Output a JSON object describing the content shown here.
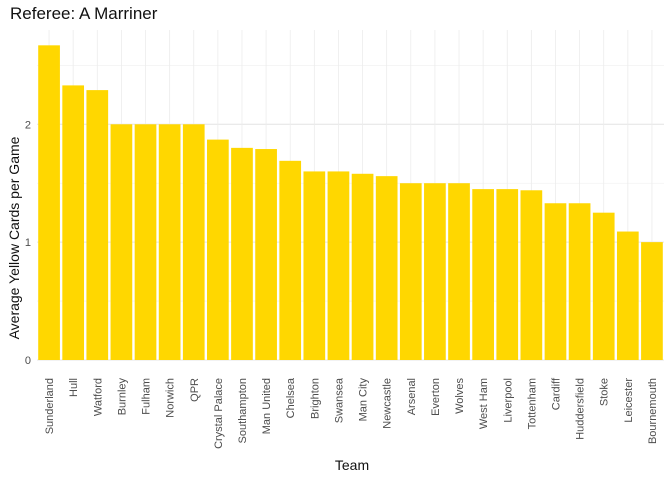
{
  "chart_data": {
    "type": "bar",
    "title": "Referee: A Marriner",
    "xlabel": "Team",
    "ylabel": "Average Yellow Cards per Game",
    "categories": [
      "Sunderland",
      "Hull",
      "Watford",
      "Burnley",
      "Fulham",
      "Norwich",
      "QPR",
      "Crystal Palace",
      "Southampton",
      "Man United",
      "Chelsea",
      "Brighton",
      "Swansea",
      "Man City",
      "Newcastle",
      "Arsenal",
      "Everton",
      "Wolves",
      "West Ham",
      "Liverpool",
      "Tottenham",
      "Cardiff",
      "Huddersfield",
      "Stoke",
      "Leicester",
      "Bournemouth"
    ],
    "values": [
      2.67,
      2.33,
      2.29,
      2.0,
      2.0,
      2.0,
      2.0,
      1.87,
      1.8,
      1.79,
      1.69,
      1.6,
      1.6,
      1.58,
      1.56,
      1.5,
      1.5,
      1.5,
      1.45,
      1.45,
      1.44,
      1.33,
      1.33,
      1.25,
      1.09,
      1.0
    ],
    "y_ticks": [
      0,
      1,
      2
    ],
    "ylim": [
      0,
      2.8
    ],
    "bar_color": "#FFD700",
    "grid": true
  }
}
